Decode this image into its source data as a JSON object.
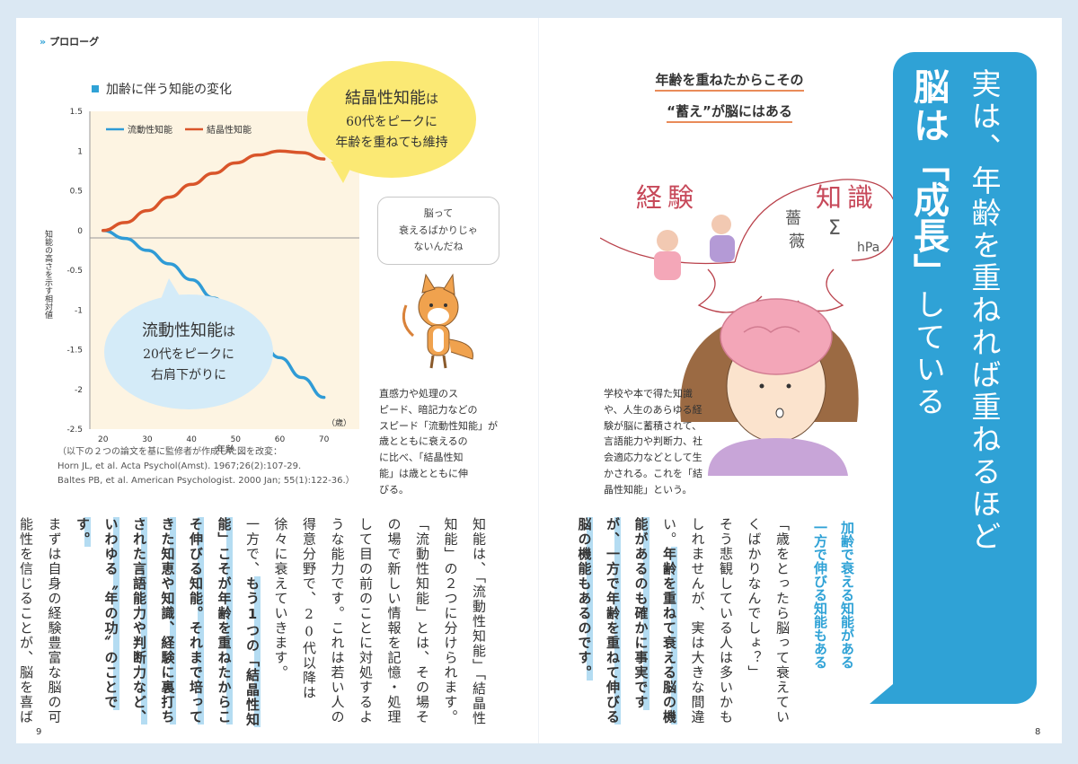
{
  "header": {
    "chevrons": "»",
    "section": "プロローグ"
  },
  "chart": {
    "title": "加齢に伴う知能の変化"
  },
  "chart_data": {
    "type": "line",
    "title": "加齢に伴う知能の変化",
    "xlabel": "年齢",
    "ylabel": "知能の高さを示す相対値",
    "x_unit": "（歳）",
    "x_ticks": [
      "20",
      "30",
      "40",
      "50",
      "60",
      "70"
    ],
    "y_ticks": [
      "1.5",
      "1",
      "0.5",
      "0",
      "-0.5",
      "-1",
      "-1.5",
      "-2",
      "-2.5"
    ],
    "xlim": [
      17,
      78
    ],
    "ylim": [
      -2.5,
      1.5
    ],
    "grid": false,
    "legend": "top-left",
    "x": [
      20,
      25,
      30,
      35,
      40,
      45,
      50,
      55,
      60,
      65,
      70
    ],
    "series": [
      {
        "name": "流動性知能",
        "color": "#2f9bd6",
        "values": [
          0,
          -0.1,
          -0.25,
          -0.42,
          -0.62,
          -0.85,
          -1.1,
          -1.35,
          -1.6,
          -1.85,
          -2.1
        ]
      },
      {
        "name": "結晶性知能",
        "color": "#d9552a",
        "values": [
          0,
          0.1,
          0.25,
          0.42,
          0.58,
          0.72,
          0.85,
          0.95,
          1.0,
          0.98,
          0.9
        ]
      }
    ]
  },
  "bubble_yellow": {
    "title": "結晶性知能",
    "title_suffix": "は",
    "line1": "60代をピークに",
    "line2": "年齢を重ねても維持"
  },
  "bubble_blue": {
    "title": "流動性知能",
    "title_suffix": "は",
    "line1": "20代をピークに",
    "line2": "右肩下がりに"
  },
  "fox_bubble": {
    "line1": "脳って",
    "line2": "衰えるばかりじゃ",
    "line3": "ないんだね"
  },
  "fox_caption": [
    "直感力や処理のス",
    "ピード、暗記力などの",
    "スピード「流動性知能」が",
    "歳とともに衰えるの",
    "に比べ、「結晶性知",
    "能」は歳とともに伸",
    "びる。"
  ],
  "source_note": [
    "（以下の２つの論文を基に監修者が作成した図を改変：",
    "Horn JL, et al. Acta Psychol(Amst). 1967;26(2):107-29.",
    "Baltes PB, et al. American Psychologist. 2000 Jan; 55(1):122-36.）"
  ],
  "left_body": {
    "p1": "知能は、「流動性知能」「結晶性知能」の２つに分けられます。「流動性知能」とは、その場その場で新しい情報を記憶・処理して目の前のことに対処するような能力です。これは若い人の得意分野で、20代以降は徐々に衰えていきます。",
    "p2a": "一方で、",
    "p2b": "もう1つの「結晶性知能」こそが年齢を重ねたからこそ伸びる知能。それまで培ってきた知恵や知識、経験に裏打ちされた言語能力や判断力など、いわゆる〝年の功〟のことです。",
    "p3": "まずは自身の経験豊富な脳の可能性を信じることが、脳を喜ばせる第一歩と心得てください。"
  },
  "right_subtitle": {
    "line1": "年齢を重ねたからこその",
    "line2": "“蓄え”が脳にはある"
  },
  "illustration": {
    "word1": "経験",
    "word2": "知識",
    "doodle1": "薔",
    "doodle2": "薇",
    "doodle3": "Σ",
    "doodle4": "hPa"
  },
  "brain_caption": [
    "学校や本で得た知識",
    "や、人生のあらゆる経",
    "験が脳に蓄積されて、",
    "言語能力や判断力、社",
    "会適応力などとして生",
    "かされる。これを「結",
    "晶性知能」という。"
  ],
  "headline": {
    "col1_a": "実は、年齢を重ねれば重ねるほど",
    "col2_bold1": "脳は",
    "col2_bold2": "「成長」",
    "col2_rest": "している"
  },
  "right_subhead": {
    "line1": "加齢で衰える知能がある",
    "line2": "一方で伸びる知能もある"
  },
  "right_body": {
    "p1": "「歳をとったら脳って衰えていくばかりなんでしょ？」",
    "p2": "そう悲観している人は多いかもしれませんが、実は大きな間違い。",
    "p2b": "年齢を重ねて衰える脳の機能があるのも確かに事実ですが、一方で年齢を重ねて伸びる脳の機能もあるのです。"
  },
  "page_numbers": {
    "left": "9",
    "right": "8"
  }
}
